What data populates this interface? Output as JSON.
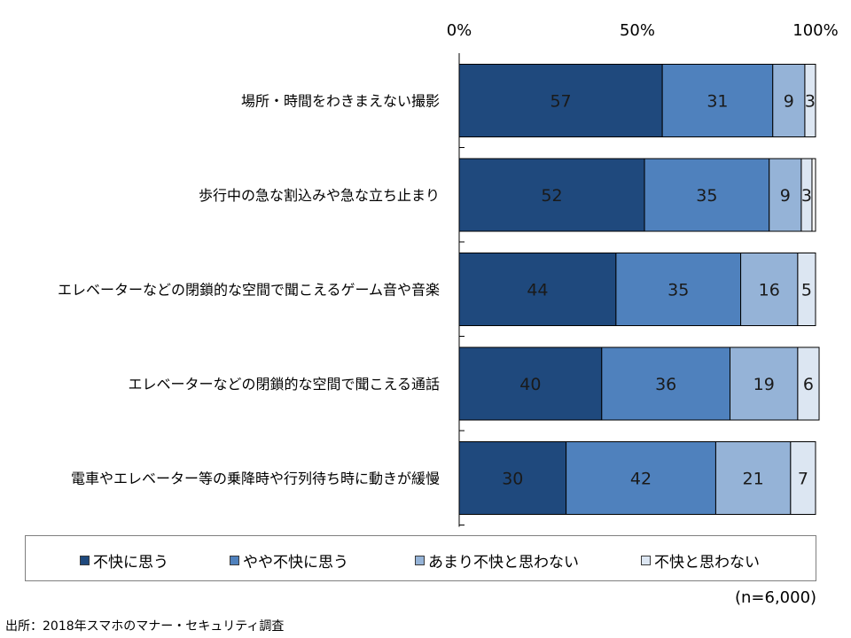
{
  "chart_data": {
    "type": "bar",
    "orientation": "horizontal",
    "stacked": true,
    "categories": [
      "場所・時間をわきまえない撮影",
      "歩行中の急な割込みや急な立ち止まり",
      "エレベーターなどの閉鎖的な空間で聞こえるゲーム音や音楽",
      "エレベーターなどの閉鎖的な空間で聞こえる通話",
      "電車やエレベーター等の乗降時や行列待ち時に動きが緩慢"
    ],
    "series": [
      {
        "name": "不快に思う",
        "values": [
          57,
          52,
          44,
          40,
          30
        ],
        "color": "#1f497d"
      },
      {
        "name": "やや不快に思う",
        "values": [
          31,
          35,
          35,
          36,
          42
        ],
        "color": "#4f81bd"
      },
      {
        "name": "あまり不快と思わない",
        "values": [
          9,
          9,
          16,
          19,
          21
        ],
        "color": "#95b3d7"
      },
      {
        "name": "不快と思わない",
        "values": [
          3,
          3,
          5,
          6,
          7
        ],
        "color": "#dce6f2"
      }
    ],
    "xlim": [
      0,
      100
    ],
    "xticks": [
      "0%",
      "50%",
      "100%"
    ],
    "legend_position": "bottom"
  },
  "legend": {
    "items": [
      {
        "label": "不快に思う",
        "color": "#1f497d"
      },
      {
        "label": "やや不快に思う",
        "color": "#4f81bd"
      },
      {
        "label": "あまり不快と思わない",
        "color": "#95b3d7"
      },
      {
        "label": "不快と思わない",
        "color": "#dce6f2"
      }
    ]
  },
  "notes": {
    "sample_size": "(n=6,000)",
    "source": "出所：2018年スマホのマナー・セキュリティ調査"
  }
}
